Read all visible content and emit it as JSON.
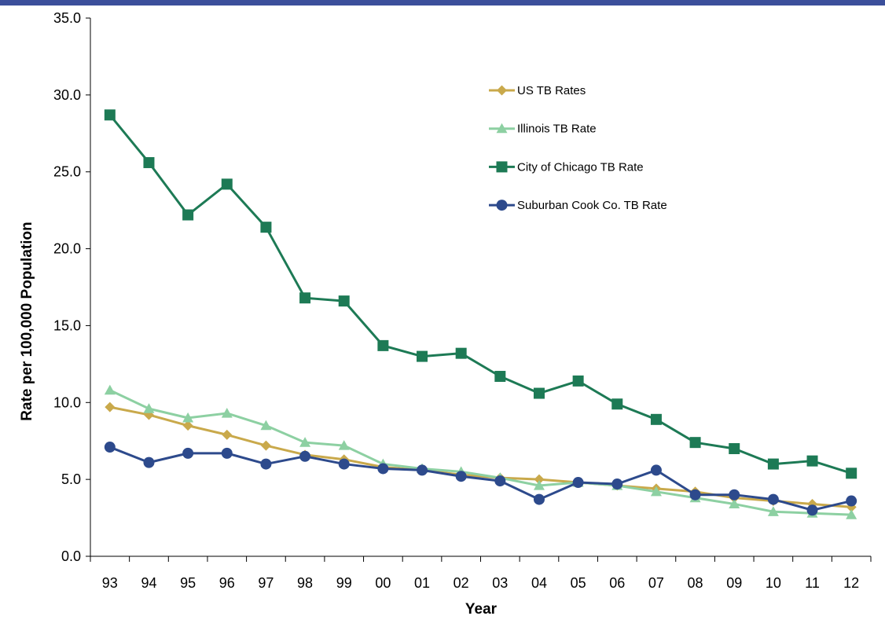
{
  "page": {
    "band_color": "#3b4f9b"
  },
  "chart_data": {
    "type": "line",
    "title": "",
    "xlabel": "Year",
    "ylabel": "Rate per 100,000 Population",
    "ylim": [
      0,
      35
    ],
    "y_ticks": [
      "0.0",
      "5.0",
      "10.0",
      "15.0",
      "20.0",
      "25.0",
      "30.0",
      "35.0"
    ],
    "categories": [
      "93",
      "94",
      "95",
      "96",
      "97",
      "98",
      "99",
      "00",
      "01",
      "02",
      "03",
      "04",
      "05",
      "06",
      "07",
      "08",
      "09",
      "10",
      "11",
      "12"
    ],
    "grid": false,
    "legend_position": "top-right",
    "series": [
      {
        "name": "US TB Rates",
        "color": "#c9a94b",
        "marker": "diamond",
        "values": [
          9.7,
          9.2,
          8.5,
          7.9,
          7.2,
          6.6,
          6.3,
          5.8,
          5.6,
          5.3,
          5.1,
          5.0,
          4.8,
          4.6,
          4.4,
          4.2,
          3.8,
          3.6,
          3.4,
          3.2
        ]
      },
      {
        "name": "Illinois TB Rate",
        "color": "#8dd0a2",
        "marker": "triangle",
        "values": [
          10.8,
          9.6,
          9.0,
          9.3,
          8.5,
          7.4,
          7.2,
          6.0,
          5.7,
          5.5,
          5.1,
          4.6,
          4.8,
          4.6,
          4.2,
          3.8,
          3.4,
          2.9,
          2.8,
          2.7
        ]
      },
      {
        "name": "City of Chicago TB Rate",
        "color": "#1d7a55",
        "marker": "square",
        "values": [
          28.7,
          25.6,
          22.2,
          24.2,
          21.4,
          16.8,
          16.6,
          13.7,
          13.0,
          13.2,
          11.7,
          10.6,
          11.4,
          9.9,
          8.9,
          7.4,
          7.0,
          6.0,
          6.2,
          5.4
        ]
      },
      {
        "name": "Suburban Cook Co. TB Rate",
        "color": "#2d4a8c",
        "marker": "circle",
        "values": [
          7.1,
          6.1,
          6.7,
          6.7,
          6.0,
          6.5,
          6.0,
          5.7,
          5.6,
          5.2,
          4.9,
          3.7,
          4.8,
          4.7,
          5.6,
          4.0,
          4.0,
          3.7,
          3.0,
          3.6
        ]
      }
    ]
  }
}
